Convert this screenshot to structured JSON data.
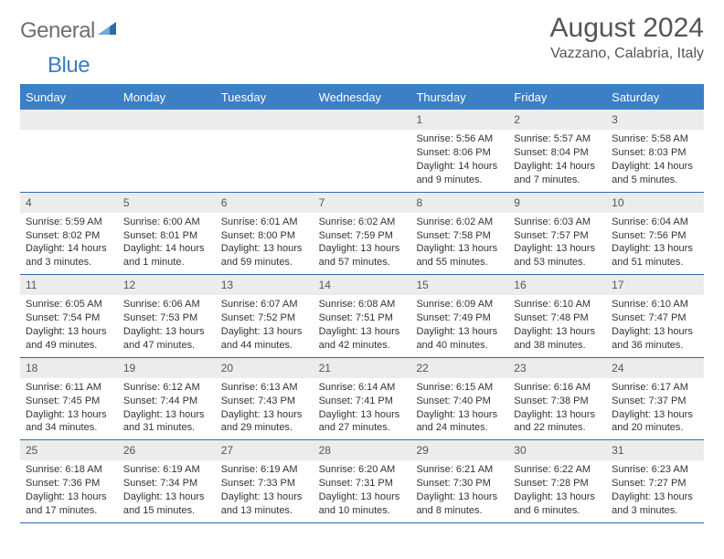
{
  "logo": {
    "general": "General",
    "blue": "Blue"
  },
  "title": {
    "month": "August 2024",
    "location": "Vazzano, Calabria, Italy"
  },
  "colors": {
    "header_bar": "#3b7fc4",
    "header_text": "#ffffff",
    "rule": "#2e6aa8",
    "daynum_bg": "#ececec",
    "body_text": "#333333",
    "title_text": "#555555",
    "logo_gray": "#6f6f6f"
  },
  "weekdays": [
    "Sunday",
    "Monday",
    "Tuesday",
    "Wednesday",
    "Thursday",
    "Friday",
    "Saturday"
  ],
  "weeks": [
    [
      {
        "n": "",
        "sunrise": "",
        "sunset": "",
        "daylight": ""
      },
      {
        "n": "",
        "sunrise": "",
        "sunset": "",
        "daylight": ""
      },
      {
        "n": "",
        "sunrise": "",
        "sunset": "",
        "daylight": ""
      },
      {
        "n": "",
        "sunrise": "",
        "sunset": "",
        "daylight": ""
      },
      {
        "n": "1",
        "sunrise": "Sunrise: 5:56 AM",
        "sunset": "Sunset: 8:06 PM",
        "daylight": "Daylight: 14 hours and 9 minutes."
      },
      {
        "n": "2",
        "sunrise": "Sunrise: 5:57 AM",
        "sunset": "Sunset: 8:04 PM",
        "daylight": "Daylight: 14 hours and 7 minutes."
      },
      {
        "n": "3",
        "sunrise": "Sunrise: 5:58 AM",
        "sunset": "Sunset: 8:03 PM",
        "daylight": "Daylight: 14 hours and 5 minutes."
      }
    ],
    [
      {
        "n": "4",
        "sunrise": "Sunrise: 5:59 AM",
        "sunset": "Sunset: 8:02 PM",
        "daylight": "Daylight: 14 hours and 3 minutes."
      },
      {
        "n": "5",
        "sunrise": "Sunrise: 6:00 AM",
        "sunset": "Sunset: 8:01 PM",
        "daylight": "Daylight: 14 hours and 1 minute."
      },
      {
        "n": "6",
        "sunrise": "Sunrise: 6:01 AM",
        "sunset": "Sunset: 8:00 PM",
        "daylight": "Daylight: 13 hours and 59 minutes."
      },
      {
        "n": "7",
        "sunrise": "Sunrise: 6:02 AM",
        "sunset": "Sunset: 7:59 PM",
        "daylight": "Daylight: 13 hours and 57 minutes."
      },
      {
        "n": "8",
        "sunrise": "Sunrise: 6:02 AM",
        "sunset": "Sunset: 7:58 PM",
        "daylight": "Daylight: 13 hours and 55 minutes."
      },
      {
        "n": "9",
        "sunrise": "Sunrise: 6:03 AM",
        "sunset": "Sunset: 7:57 PM",
        "daylight": "Daylight: 13 hours and 53 minutes."
      },
      {
        "n": "10",
        "sunrise": "Sunrise: 6:04 AM",
        "sunset": "Sunset: 7:56 PM",
        "daylight": "Daylight: 13 hours and 51 minutes."
      }
    ],
    [
      {
        "n": "11",
        "sunrise": "Sunrise: 6:05 AM",
        "sunset": "Sunset: 7:54 PM",
        "daylight": "Daylight: 13 hours and 49 minutes."
      },
      {
        "n": "12",
        "sunrise": "Sunrise: 6:06 AM",
        "sunset": "Sunset: 7:53 PM",
        "daylight": "Daylight: 13 hours and 47 minutes."
      },
      {
        "n": "13",
        "sunrise": "Sunrise: 6:07 AM",
        "sunset": "Sunset: 7:52 PM",
        "daylight": "Daylight: 13 hours and 44 minutes."
      },
      {
        "n": "14",
        "sunrise": "Sunrise: 6:08 AM",
        "sunset": "Sunset: 7:51 PM",
        "daylight": "Daylight: 13 hours and 42 minutes."
      },
      {
        "n": "15",
        "sunrise": "Sunrise: 6:09 AM",
        "sunset": "Sunset: 7:49 PM",
        "daylight": "Daylight: 13 hours and 40 minutes."
      },
      {
        "n": "16",
        "sunrise": "Sunrise: 6:10 AM",
        "sunset": "Sunset: 7:48 PM",
        "daylight": "Daylight: 13 hours and 38 minutes."
      },
      {
        "n": "17",
        "sunrise": "Sunrise: 6:10 AM",
        "sunset": "Sunset: 7:47 PM",
        "daylight": "Daylight: 13 hours and 36 minutes."
      }
    ],
    [
      {
        "n": "18",
        "sunrise": "Sunrise: 6:11 AM",
        "sunset": "Sunset: 7:45 PM",
        "daylight": "Daylight: 13 hours and 34 minutes."
      },
      {
        "n": "19",
        "sunrise": "Sunrise: 6:12 AM",
        "sunset": "Sunset: 7:44 PM",
        "daylight": "Daylight: 13 hours and 31 minutes."
      },
      {
        "n": "20",
        "sunrise": "Sunrise: 6:13 AM",
        "sunset": "Sunset: 7:43 PM",
        "daylight": "Daylight: 13 hours and 29 minutes."
      },
      {
        "n": "21",
        "sunrise": "Sunrise: 6:14 AM",
        "sunset": "Sunset: 7:41 PM",
        "daylight": "Daylight: 13 hours and 27 minutes."
      },
      {
        "n": "22",
        "sunrise": "Sunrise: 6:15 AM",
        "sunset": "Sunset: 7:40 PM",
        "daylight": "Daylight: 13 hours and 24 minutes."
      },
      {
        "n": "23",
        "sunrise": "Sunrise: 6:16 AM",
        "sunset": "Sunset: 7:38 PM",
        "daylight": "Daylight: 13 hours and 22 minutes."
      },
      {
        "n": "24",
        "sunrise": "Sunrise: 6:17 AM",
        "sunset": "Sunset: 7:37 PM",
        "daylight": "Daylight: 13 hours and 20 minutes."
      }
    ],
    [
      {
        "n": "25",
        "sunrise": "Sunrise: 6:18 AM",
        "sunset": "Sunset: 7:36 PM",
        "daylight": "Daylight: 13 hours and 17 minutes."
      },
      {
        "n": "26",
        "sunrise": "Sunrise: 6:19 AM",
        "sunset": "Sunset: 7:34 PM",
        "daylight": "Daylight: 13 hours and 15 minutes."
      },
      {
        "n": "27",
        "sunrise": "Sunrise: 6:19 AM",
        "sunset": "Sunset: 7:33 PM",
        "daylight": "Daylight: 13 hours and 13 minutes."
      },
      {
        "n": "28",
        "sunrise": "Sunrise: 6:20 AM",
        "sunset": "Sunset: 7:31 PM",
        "daylight": "Daylight: 13 hours and 10 minutes."
      },
      {
        "n": "29",
        "sunrise": "Sunrise: 6:21 AM",
        "sunset": "Sunset: 7:30 PM",
        "daylight": "Daylight: 13 hours and 8 minutes."
      },
      {
        "n": "30",
        "sunrise": "Sunrise: 6:22 AM",
        "sunset": "Sunset: 7:28 PM",
        "daylight": "Daylight: 13 hours and 6 minutes."
      },
      {
        "n": "31",
        "sunrise": "Sunrise: 6:23 AM",
        "sunset": "Sunset: 7:27 PM",
        "daylight": "Daylight: 13 hours and 3 minutes."
      }
    ]
  ]
}
